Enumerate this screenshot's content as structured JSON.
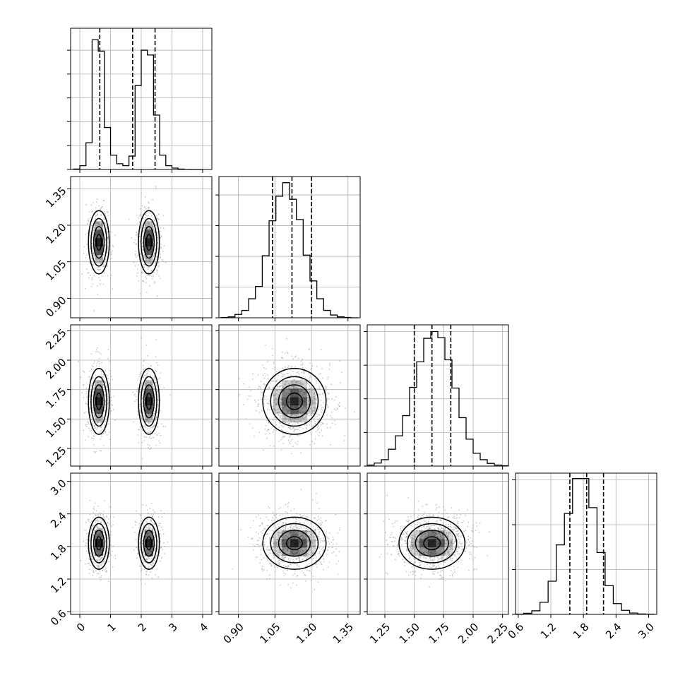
{
  "chart_data": {
    "type": "corner",
    "parameters": [
      {
        "range": [
          -0.3,
          4.3
        ],
        "ticks": [
          0,
          1,
          2,
          3,
          4
        ],
        "tick_labels": [
          "0",
          "1",
          "2",
          "3",
          "4"
        ],
        "hist_bins": [
          -0.2,
          0.0,
          0.2,
          0.4,
          0.6,
          0.8,
          1.0,
          1.2,
          1.4,
          1.6,
          1.8,
          2.0,
          2.2,
          2.4,
          2.6,
          2.8,
          3.0,
          3.2,
          3.4,
          3.6,
          3.8,
          4.0
        ],
        "hist_counts": [
          4,
          40,
          280,
          1360,
          1240,
          440,
          150,
          60,
          40,
          140,
          880,
          1250,
          1200,
          570,
          150,
          40,
          15,
          4,
          1,
          0
        ],
        "hist_ymax": 1480,
        "hist_yticks": [
          0,
          250,
          500,
          750,
          1000,
          1250
        ],
        "quantiles": [
          0.65,
          1.72,
          2.45
        ]
      },
      {
        "range": [
          0.82,
          1.4
        ],
        "ticks": [
          0.9,
          1.05,
          1.2,
          1.35
        ],
        "tick_labels": [
          "0.90",
          "1.05",
          "1.20",
          "1.35"
        ],
        "hist_bins": [
          0.83,
          0.858,
          0.886,
          0.914,
          0.942,
          0.97,
          0.998,
          1.026,
          1.054,
          1.082,
          1.11,
          1.138,
          1.166,
          1.194,
          1.222,
          1.25,
          1.278,
          1.306,
          1.334,
          1.362,
          1.39
        ],
        "hist_counts": [
          4,
          15,
          55,
          120,
          310,
          510,
          1010,
          1580,
          1980,
          2200,
          1930,
          1600,
          1020,
          600,
          310,
          120,
          45,
          15,
          5,
          0
        ],
        "hist_ymax": 2300,
        "hist_yticks": [
          0,
          500,
          1000,
          1500,
          2000
        ],
        "quantiles": [
          1.04,
          1.12,
          1.2
        ]
      },
      {
        "range": [
          1.1,
          2.3
        ],
        "ticks": [
          1.25,
          1.5,
          1.75,
          2.0,
          2.25
        ],
        "tick_labels": [
          "1.25",
          "1.50",
          "1.75",
          "2.00",
          "2.25"
        ],
        "hist_bins": [
          1.1,
          1.16,
          1.22,
          1.28,
          1.34,
          1.4,
          1.46,
          1.52,
          1.58,
          1.64,
          1.7,
          1.76,
          1.82,
          1.88,
          1.94,
          2.0,
          2.06,
          2.12,
          2.18,
          2.24,
          2.3
        ],
        "hist_counts": [
          15,
          45,
          95,
          250,
          450,
          750,
          1170,
          1550,
          1900,
          2000,
          1910,
          1580,
          1160,
          720,
          400,
          190,
          95,
          40,
          15,
          5
        ],
        "hist_ymax": 2100,
        "hist_yticks": [
          0,
          500,
          1000,
          1500,
          2000
        ],
        "quantiles": [
          1.5,
          1.65,
          1.81
        ]
      },
      {
        "range": [
          0.55,
          3.15
        ],
        "ticks": [
          0.6,
          1.2,
          1.8,
          2.4,
          3.0
        ],
        "tick_labels": [
          "0.6",
          "1.2",
          "1.8",
          "2.4",
          "3.0"
        ],
        "hist_bins": [
          0.55,
          0.7,
          0.85,
          1.0,
          1.15,
          1.3,
          1.45,
          1.6,
          1.75,
          1.9,
          2.05,
          2.2,
          2.35,
          2.5,
          2.65,
          2.8,
          2.95,
          3.1
        ],
        "hist_counts": [
          5,
          25,
          80,
          270,
          740,
          1550,
          2250,
          3030,
          3030,
          2380,
          1380,
          640,
          240,
          90,
          30,
          10,
          3
        ],
        "hist_ymax": 3150,
        "hist_yticks": [
          0,
          1000,
          2000,
          3000
        ],
        "quantiles": [
          1.55,
          1.86,
          2.17
        ]
      }
    ],
    "modes": [
      [
        0.62,
        2.25
      ],
      [
        1.13
      ],
      [
        1.65
      ],
      [
        1.86
      ]
    ],
    "sigmas": [
      0.17,
      0.065,
      0.14,
      0.24
    ],
    "grid": true,
    "points_per_panel": 900,
    "colors": {
      "line": "#000000",
      "points": "#9a9a9a",
      "grid": "#b0b0b0",
      "shade": "#000000"
    }
  }
}
